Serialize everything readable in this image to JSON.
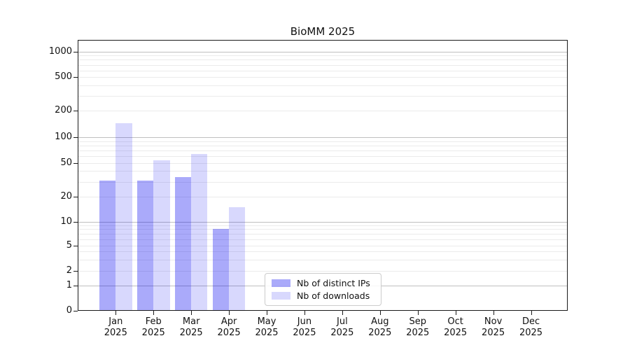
{
  "figure": {
    "background": "#ffffff",
    "axis_color": "#1a1a1a",
    "grid_major_color": "#bfbfbf",
    "grid_minor_color": "#ebebeb"
  },
  "chart_data": {
    "type": "bar",
    "title": "BioMM 2025",
    "months": [
      "Jan",
      "Feb",
      "Mar",
      "Apr",
      "May",
      "Jun",
      "Jul",
      "Aug",
      "Sep",
      "Oct",
      "Nov",
      "Dec"
    ],
    "year": "2025",
    "series": [
      {
        "name": "Nb of distinct IPs",
        "color": "rgba(0,0,240,0.335)",
        "values": [
          31,
          31,
          34,
          8,
          null,
          null,
          null,
          null,
          null,
          null,
          null,
          null
        ]
      },
      {
        "name": "Nb of downloads",
        "color": "rgba(0,0,240,0.153)",
        "values": [
          145,
          54,
          63,
          15,
          null,
          null,
          null,
          null,
          null,
          null,
          null,
          null
        ]
      }
    ],
    "y_ticks": [
      0,
      1,
      2,
      5,
      10,
      20,
      50,
      100,
      200,
      500,
      1000
    ],
    "y_scale": "symlog (log above ~5, compressed toward 0)",
    "ylim": [
      0,
      1400
    ],
    "xlabel": "",
    "ylabel": "",
    "grid": true,
    "legend_position": "lower center"
  }
}
